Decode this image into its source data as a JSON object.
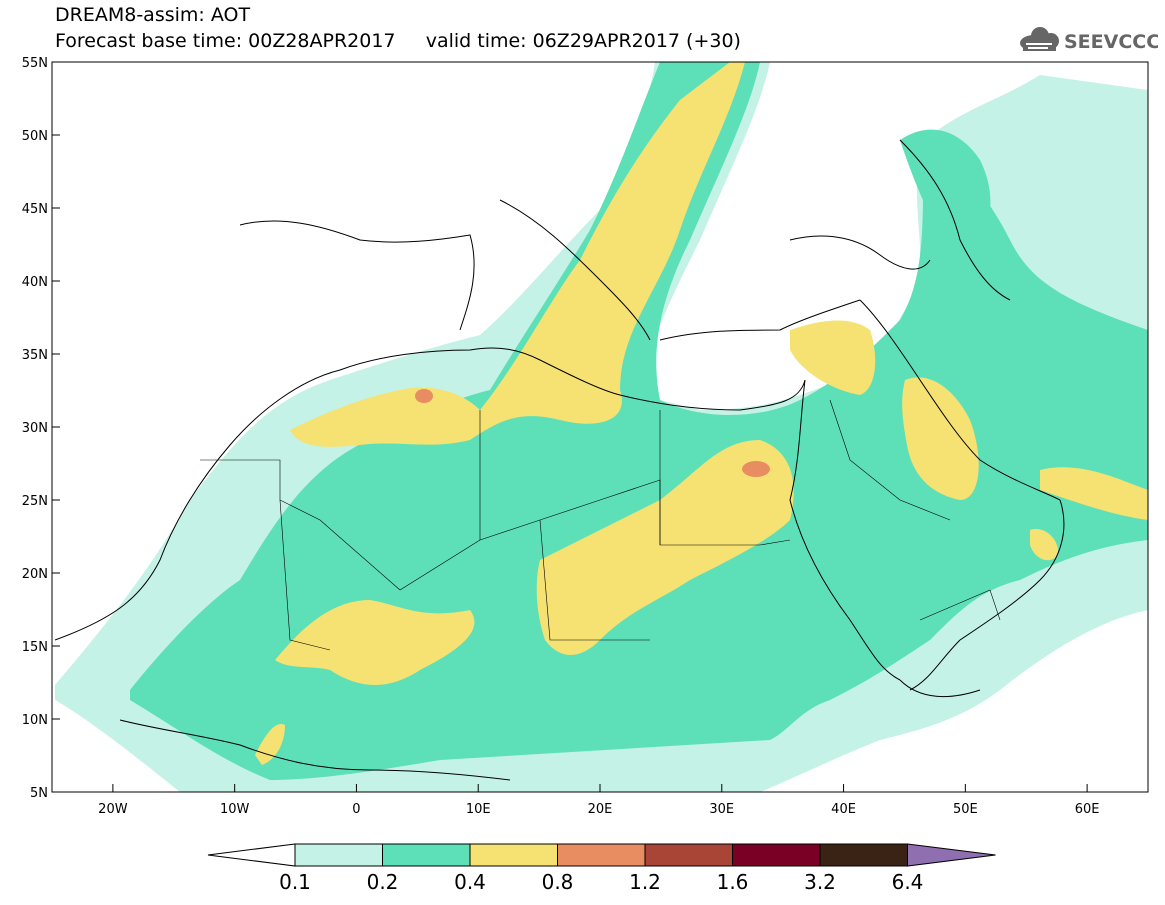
{
  "header": {
    "model_line": "DREAM8-assim: AOT",
    "forecast_line": "Forecast base time: 00Z28APR2017     valid time: 06Z29APR2017 (+30)",
    "logo_text": "SEEVCCC",
    "logo_icon": "cloud-icon"
  },
  "map": {
    "lat_labels": [
      "55N",
      "50N",
      "45N",
      "40N",
      "35N",
      "30N",
      "25N",
      "20N",
      "15N",
      "10N",
      "5N"
    ],
    "lon_labels": [
      "20W",
      "10W",
      "0",
      "10E",
      "20E",
      "30E",
      "40E",
      "50E",
      "60E"
    ],
    "lat_range": [
      5,
      55
    ],
    "lon_range": [
      -25,
      65
    ]
  },
  "colorbar": {
    "labels": [
      "0.1",
      "0.2",
      "0.4",
      "0.8",
      "1.2",
      "1.6",
      "3.2",
      "6.4"
    ],
    "colors": [
      "#ffffff",
      "#c4f2e6",
      "#5ddfb8",
      "#f5e272",
      "#e88c62",
      "#a84536",
      "#7a0025",
      "#3a2314",
      "#8f6fb0"
    ]
  }
}
